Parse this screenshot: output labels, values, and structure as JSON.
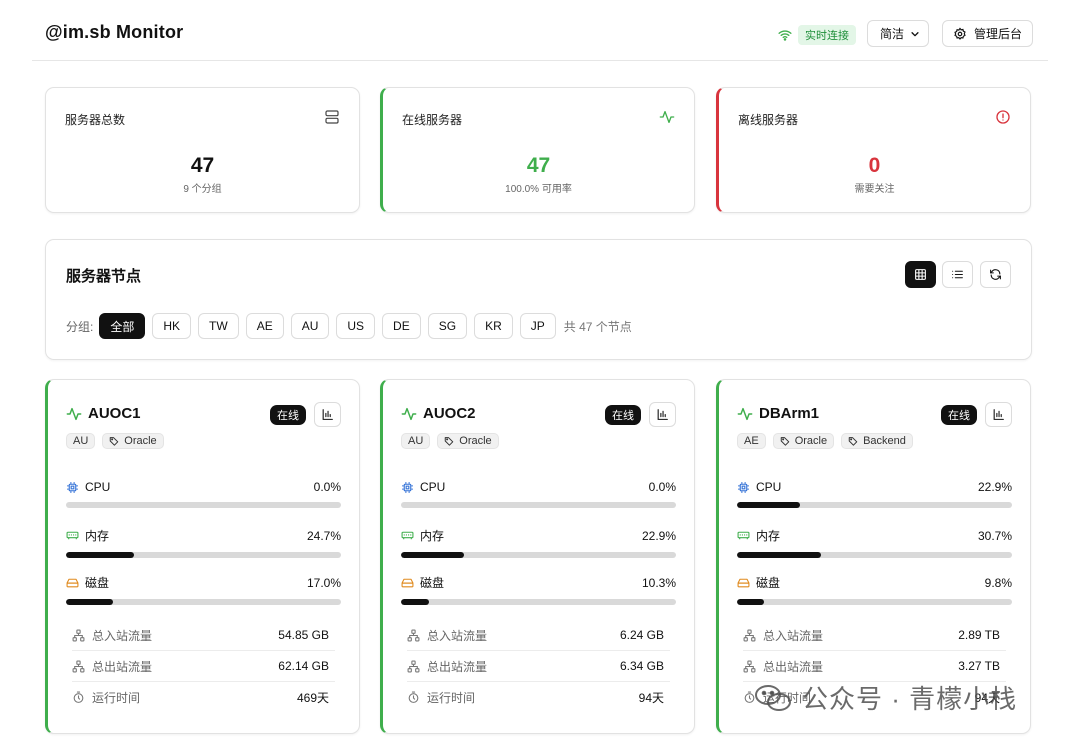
{
  "header": {
    "title": "@im.sb Monitor",
    "status": "实时连接",
    "language": "简洁",
    "admin": "管理后台"
  },
  "stats": [
    {
      "title": "服务器总数",
      "value": "47",
      "sub": "9 个分组",
      "icon": "server-icon"
    },
    {
      "title": "在线服务器",
      "value": "47",
      "sub": "100.0% 可用率",
      "icon": "activity-icon",
      "color": "#3fae4c"
    },
    {
      "title": "离线服务器",
      "value": "0",
      "sub": "需要关注",
      "icon": "alert-circle-icon",
      "color": "#d8343d"
    }
  ],
  "nodes": {
    "title": "服务器节点",
    "group_label": "分组:",
    "groups": [
      "全部",
      "HK",
      "TW",
      "AE",
      "AU",
      "US",
      "DE",
      "SG",
      "KR",
      "JP"
    ],
    "active_group": "全部",
    "count": "共 47 个节点"
  },
  "labels": {
    "online": "在线",
    "cpu": "CPU",
    "memory": "内存",
    "disk": "磁盘",
    "traffic_in": "总入站流量",
    "traffic_out": "总出站流量",
    "uptime": "运行时间"
  },
  "servers": [
    {
      "name": "AUOC1",
      "region": "AU",
      "tags": [
        "Oracle"
      ],
      "cpu": "0.0%",
      "cpu_pct": 0.0,
      "memory": "24.7%",
      "memory_pct": 24.7,
      "disk": "17.0%",
      "disk_pct": 17.0,
      "traffic_in": "54.85 GB",
      "traffic_out": "62.14 GB",
      "uptime": "469天"
    },
    {
      "name": "AUOC2",
      "region": "AU",
      "tags": [
        "Oracle"
      ],
      "cpu": "0.0%",
      "cpu_pct": 0.0,
      "memory": "22.9%",
      "memory_pct": 22.9,
      "disk": "10.3%",
      "disk_pct": 10.3,
      "traffic_in": "6.24 GB",
      "traffic_out": "6.34 GB",
      "uptime": "94天"
    },
    {
      "name": "DBArm1",
      "region": "AE",
      "tags": [
        "Oracle",
        "Backend"
      ],
      "cpu": "22.9%",
      "cpu_pct": 22.9,
      "memory": "30.7%",
      "memory_pct": 30.7,
      "disk": "9.8%",
      "disk_pct": 9.8,
      "traffic_in": "2.89 TB",
      "traffic_out": "3.27 TB",
      "uptime": "94天"
    }
  ],
  "watermark": "公众号 · 青檬小栈",
  "colors": {
    "online": "#3fae4c",
    "offline": "#d8343d",
    "cpu_icon": "#2f6fd6",
    "memory_icon": "#3fae4c",
    "disk_icon": "#e08a1e"
  }
}
